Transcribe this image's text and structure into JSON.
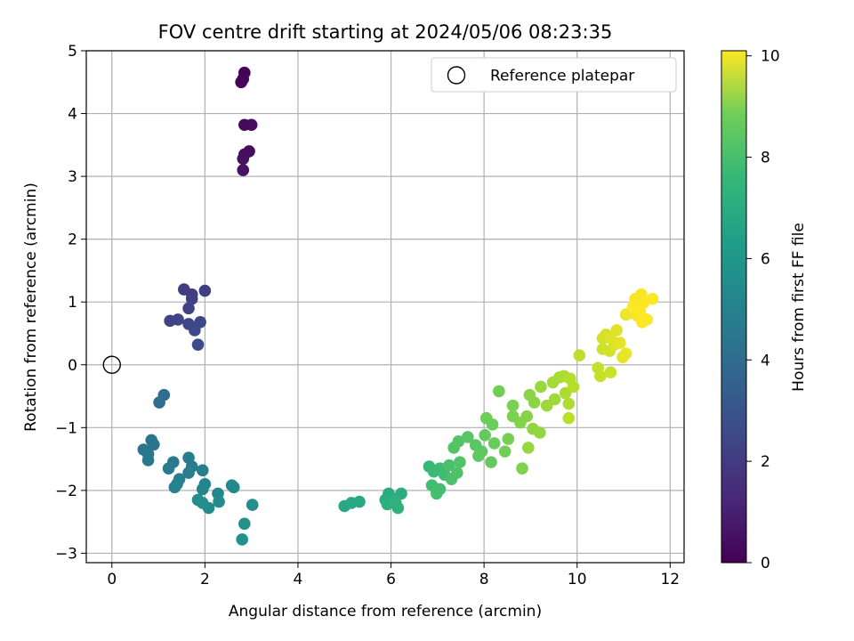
{
  "chart_data": {
    "type": "scatter",
    "title": "FOV centre drift starting at 2024/05/06 08:23:35",
    "xlabel": "Angular distance from reference (arcmin)",
    "ylabel": "Rotation from reference (arcmin)",
    "xlim": [
      -0.55,
      12.3
    ],
    "ylim": [
      -3.15,
      5.0
    ],
    "xticks": [
      0,
      2,
      4,
      6,
      8,
      10,
      12
    ],
    "yticks": [
      -3,
      -2,
      -1,
      0,
      1,
      2,
      3,
      4,
      5
    ],
    "x_tick_labels": [
      "0",
      "2",
      "4",
      "6",
      "8",
      "10",
      "12"
    ],
    "y_tick_labels": [
      "−3",
      "−2",
      "−1",
      "0",
      "1",
      "2",
      "3",
      "4",
      "5"
    ],
    "grid": true,
    "colormap": "viridis",
    "colorbar": {
      "label": "Hours from first FF file",
      "range": [
        0,
        10.1
      ],
      "ticks": [
        0,
        2,
        4,
        6,
        8,
        10
      ],
      "tick_labels": [
        "0",
        "2",
        "4",
        "6",
        "8",
        "10"
      ]
    },
    "legend": {
      "placement": "upper right",
      "entries": [
        "Reference platepar"
      ]
    },
    "reference_point": {
      "x": 0,
      "y": 0
    },
    "series": [
      {
        "points": [
          [
            2.85,
            4.65,
            0.05
          ],
          [
            2.82,
            4.55,
            0.1
          ],
          [
            2.78,
            4.5,
            0.15
          ],
          [
            2.85,
            3.82,
            0.25
          ],
          [
            3.0,
            3.82,
            0.3
          ],
          [
            2.95,
            3.4,
            0.35
          ],
          [
            2.85,
            3.35,
            0.4
          ],
          [
            2.82,
            3.28,
            0.45
          ],
          [
            2.82,
            3.1,
            0.5
          ],
          [
            1.55,
            1.2,
            1.8
          ],
          [
            1.72,
            1.12,
            1.85
          ],
          [
            2.0,
            1.18,
            1.9
          ],
          [
            1.72,
            1.05,
            1.95
          ],
          [
            1.65,
            0.9,
            2.0
          ],
          [
            1.25,
            0.7,
            2.05
          ],
          [
            1.42,
            0.72,
            2.1
          ],
          [
            1.65,
            0.65,
            2.15
          ],
          [
            1.9,
            0.68,
            2.2
          ],
          [
            1.78,
            0.55,
            2.25
          ],
          [
            1.85,
            0.32,
            2.3
          ],
          [
            1.12,
            -0.48,
            3.6
          ],
          [
            1.02,
            -0.6,
            3.65
          ],
          [
            0.85,
            -1.2,
            3.85
          ],
          [
            0.9,
            -1.27,
            3.9
          ],
          [
            0.68,
            -1.35,
            3.95
          ],
          [
            0.78,
            -1.42,
            4.0
          ],
          [
            0.78,
            -1.52,
            4.05
          ],
          [
            1.32,
            -1.55,
            4.1
          ],
          [
            1.22,
            -1.65,
            4.15
          ],
          [
            1.65,
            -1.48,
            4.2
          ],
          [
            1.72,
            -1.62,
            4.25
          ],
          [
            1.65,
            -1.72,
            4.3
          ],
          [
            1.95,
            -1.68,
            4.35
          ],
          [
            1.45,
            -1.82,
            4.4
          ],
          [
            1.4,
            -1.9,
            4.45
          ],
          [
            1.35,
            -1.95,
            4.5
          ],
          [
            2.0,
            -1.9,
            4.55
          ],
          [
            1.95,
            -1.98,
            4.6
          ],
          [
            2.28,
            -2.05,
            4.65
          ],
          [
            2.58,
            -1.92,
            4.7
          ],
          [
            2.62,
            -1.95,
            4.75
          ],
          [
            2.3,
            -2.18,
            4.8
          ],
          [
            2.08,
            -2.28,
            4.85
          ],
          [
            1.85,
            -2.15,
            4.9
          ],
          [
            1.95,
            -2.2,
            4.95
          ],
          [
            3.02,
            -2.23,
            5.0
          ],
          [
            2.85,
            -2.53,
            5.05
          ],
          [
            2.8,
            -2.78,
            5.1
          ],
          [
            5.0,
            -2.25,
            6.0
          ],
          [
            5.15,
            -2.2,
            6.05
          ],
          [
            5.32,
            -2.18,
            6.1
          ],
          [
            5.95,
            -2.05,
            6.15
          ],
          [
            6.02,
            -2.12,
            6.2
          ],
          [
            5.88,
            -2.15,
            6.25
          ],
          [
            6.22,
            -2.05,
            6.3
          ],
          [
            6.1,
            -2.2,
            6.35
          ],
          [
            5.92,
            -2.22,
            6.4
          ],
          [
            6.15,
            -2.28,
            6.45
          ],
          [
            6.08,
            -2.18,
            6.5
          ],
          [
            6.82,
            -1.62,
            6.8
          ],
          [
            6.92,
            -1.7,
            6.85
          ],
          [
            7.05,
            -1.65,
            6.9
          ],
          [
            7.15,
            -1.75,
            6.95
          ],
          [
            6.88,
            -1.92,
            7.0
          ],
          [
            7.05,
            -1.98,
            7.05
          ],
          [
            6.98,
            -2.05,
            7.1
          ],
          [
            7.25,
            -1.6,
            7.15
          ],
          [
            7.3,
            -1.82,
            7.2
          ],
          [
            7.42,
            -1.72,
            7.25
          ],
          [
            7.48,
            -1.55,
            7.3
          ],
          [
            7.35,
            -1.32,
            7.35
          ],
          [
            7.45,
            -1.22,
            7.4
          ],
          [
            7.65,
            -1.15,
            7.45
          ],
          [
            7.82,
            -1.28,
            7.5
          ],
          [
            7.95,
            -1.38,
            7.55
          ],
          [
            7.88,
            -1.45,
            7.6
          ],
          [
            8.15,
            -1.55,
            7.65
          ],
          [
            8.02,
            -1.12,
            7.7
          ],
          [
            8.22,
            -1.25,
            7.75
          ],
          [
            8.18,
            -0.95,
            7.8
          ],
          [
            8.05,
            -0.85,
            7.85
          ],
          [
            8.32,
            -0.42,
            7.9
          ],
          [
            8.45,
            -1.38,
            7.95
          ],
          [
            8.52,
            -1.18,
            8.0
          ],
          [
            8.62,
            -0.65,
            8.05
          ],
          [
            8.62,
            -0.82,
            8.1
          ],
          [
            8.82,
            -1.65,
            8.15
          ],
          [
            8.78,
            -0.92,
            8.2
          ],
          [
            8.92,
            -0.82,
            8.25
          ],
          [
            8.98,
            -0.48,
            8.3
          ],
          [
            9.08,
            -0.6,
            8.35
          ],
          [
            9.05,
            -1.02,
            8.4
          ],
          [
            9.2,
            -1.08,
            8.45
          ],
          [
            8.95,
            -1.32,
            8.5
          ],
          [
            9.22,
            -0.35,
            8.55
          ],
          [
            9.35,
            -0.65,
            8.6
          ],
          [
            9.52,
            -0.55,
            8.65
          ],
          [
            9.48,
            -0.28,
            8.7
          ],
          [
            9.62,
            -0.2,
            8.75
          ],
          [
            9.75,
            -0.45,
            8.8
          ],
          [
            9.72,
            -0.18,
            8.85
          ],
          [
            9.82,
            -0.62,
            8.9
          ],
          [
            9.85,
            -0.22,
            8.95
          ],
          [
            9.92,
            -0.35,
            9.0
          ],
          [
            9.82,
            -0.85,
            9.05
          ],
          [
            10.05,
            0.15,
            9.1
          ],
          [
            10.45,
            -0.05,
            9.2
          ],
          [
            10.5,
            -0.18,
            9.25
          ],
          [
            10.72,
            -0.12,
            9.3
          ],
          [
            10.55,
            0.25,
            9.35
          ],
          [
            10.55,
            0.42,
            9.4
          ],
          [
            10.7,
            0.22,
            9.45
          ],
          [
            10.62,
            0.48,
            9.5
          ],
          [
            10.8,
            0.32,
            9.55
          ],
          [
            10.72,
            0.42,
            9.6
          ],
          [
            10.85,
            0.55,
            9.65
          ],
          [
            10.92,
            0.35,
            9.7
          ],
          [
            10.98,
            0.12,
            9.75
          ],
          [
            11.05,
            0.18,
            9.8
          ],
          [
            11.05,
            0.8,
            9.85
          ],
          [
            11.12,
            0.82,
            9.9
          ],
          [
            11.3,
            0.78,
            9.95
          ],
          [
            11.25,
            1.05,
            10.0
          ],
          [
            11.38,
            1.12,
            10.02
          ],
          [
            11.42,
            0.98,
            10.04
          ],
          [
            11.5,
            0.72,
            10.06
          ],
          [
            11.4,
            0.68,
            10.07
          ],
          [
            11.62,
            1.05,
            10.08
          ],
          [
            11.35,
            0.85,
            10.09
          ],
          [
            11.2,
            0.92,
            10.1
          ]
        ]
      }
    ]
  }
}
